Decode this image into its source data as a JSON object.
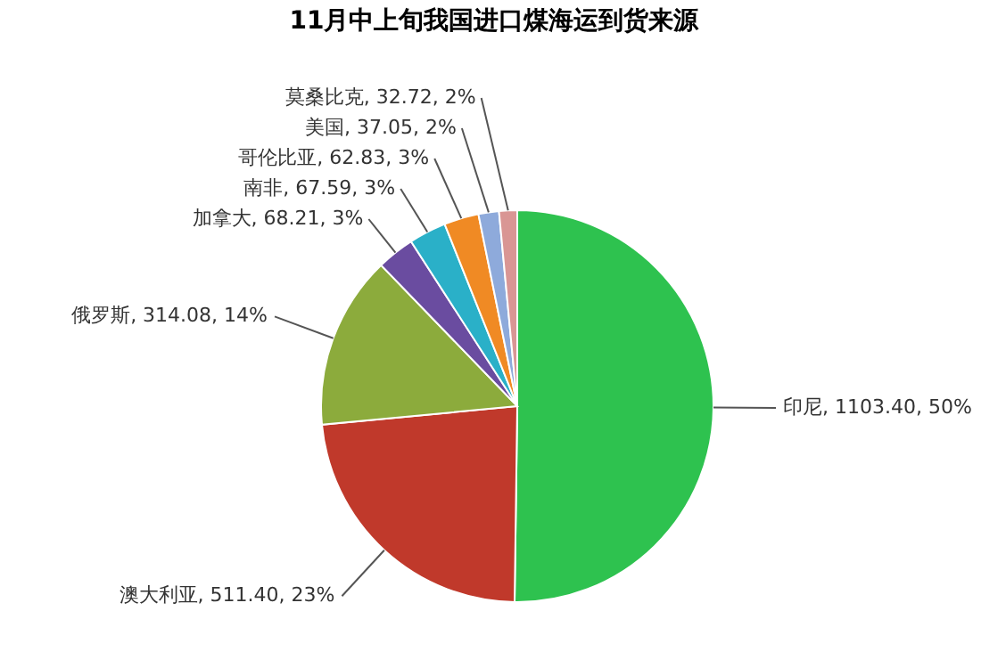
{
  "chart_data": {
    "type": "pie",
    "title": "11月中上旬我国进口煤海运到货来源",
    "categories": [
      "印尼",
      "澳大利亚",
      "俄罗斯",
      "加拿大",
      "南非",
      "哥伦比亚",
      "美国",
      "莫桑比克"
    ],
    "values": [
      1103.4,
      511.4,
      314.08,
      68.21,
      67.59,
      62.83,
      37.05,
      32.72
    ],
    "value_labels": [
      "1103.40, 50%",
      "511.40, 23%",
      "314.08, 14%",
      "68.21, 3%",
      "67.59, 3%",
      "62.83, 3%",
      "37.05, 2%",
      "32.72, 2%"
    ],
    "colors": [
      "#2ec24f",
      "#c0392b",
      "#8cab3c",
      "#6a4ca0",
      "#2ab0c8",
      "#f08a24",
      "#8eaadb",
      "#d99694"
    ],
    "legend": false
  }
}
